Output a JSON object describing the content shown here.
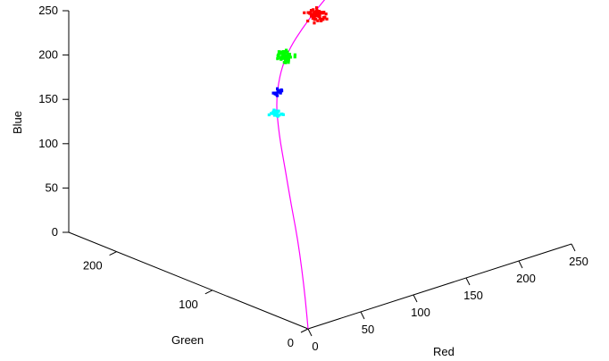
{
  "chart_data": {
    "type": "scatter",
    "projection": "3d",
    "title": "",
    "xlabel": "Red",
    "ylabel": "Green",
    "zlabel": "Blue",
    "xlim": [
      0,
      250
    ],
    "ylim": [
      0,
      250
    ],
    "zlim": [
      0,
      250
    ],
    "xticks": [
      "0",
      "50",
      "100",
      "150",
      "200",
      "250"
    ],
    "yticks": [
      "0",
      "100",
      "200"
    ],
    "zticks": [
      "0",
      "50",
      "100",
      "150",
      "200",
      "250"
    ],
    "grid": false,
    "curve": {
      "color": "#ff00ff",
      "points": [
        [
          0,
          0,
          0
        ],
        [
          2,
          5,
          30
        ],
        [
          5,
          12,
          60
        ],
        [
          9,
          21,
          90
        ],
        [
          14,
          33,
          120
        ],
        [
          22,
          48,
          150
        ],
        [
          36,
          70,
          175
        ],
        [
          60,
          100,
          195
        ],
        [
          100,
          135,
          210
        ],
        [
          150,
          165,
          220
        ],
        [
          210,
          195,
          230
        ],
        [
          240,
          210,
          240
        ]
      ]
    },
    "clusters": [
      {
        "color": "#00ffff",
        "center": [
          70,
          110,
          168
        ],
        "spread": [
          4,
          4,
          3
        ],
        "count": 22
      },
      {
        "color": "#0000ff",
        "center": [
          85,
          125,
          180
        ],
        "spread": [
          2,
          3,
          3
        ],
        "count": 20
      },
      {
        "color": "#00ff00",
        "center": [
          115,
          150,
          198
        ],
        "spread": [
          5,
          5,
          4
        ],
        "count": 45
      },
      {
        "color": "#ff0000",
        "center": [
          170,
          180,
          210
        ],
        "spread": [
          7,
          6,
          5
        ],
        "count": 55
      }
    ]
  }
}
